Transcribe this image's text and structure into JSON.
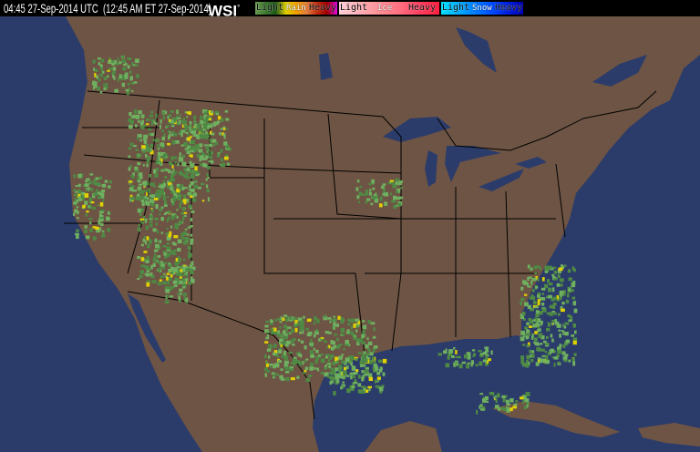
{
  "header": {
    "timestamp": "04:45 27-Sep-2014 UTC  (12:45 AM ET 27-Sep-2014)",
    "logo": "WSI",
    "logo_mark": "°"
  },
  "legend": {
    "rain": {
      "title": "Rain",
      "light": "Light",
      "heavy": "Heavy",
      "colors": [
        "#6a9a50",
        "#3d7a2e",
        "#1f5a1a",
        "#e0d000",
        "#f0a000",
        "#e08040",
        "#c03010",
        "#a00000",
        "#e000e0"
      ]
    },
    "ice": {
      "title": "Ice",
      "light": "Light",
      "heavy": "Heavy",
      "colors": [
        "#ffd0d8",
        "#ffb0b8",
        "#ff9098",
        "#ff7080",
        "#ff4060",
        "#ff2040"
      ]
    },
    "snow": {
      "title": "Snow",
      "light": "Light",
      "heavy": "Heavy",
      "colors": [
        "#00e0ff",
        "#00b0ff",
        "#0080ff",
        "#0050ff",
        "#0020e0",
        "#0000b0"
      ]
    }
  },
  "map": {
    "ocean_color": "#2c3c6a",
    "land_color": "#6e5444",
    "lake_color": "#2c3c6a",
    "border_color": "#000000",
    "precip_colors": {
      "light_rain": "#4f8a45",
      "moderate": "#6fb060",
      "heavy": "#e0d000"
    }
  }
}
